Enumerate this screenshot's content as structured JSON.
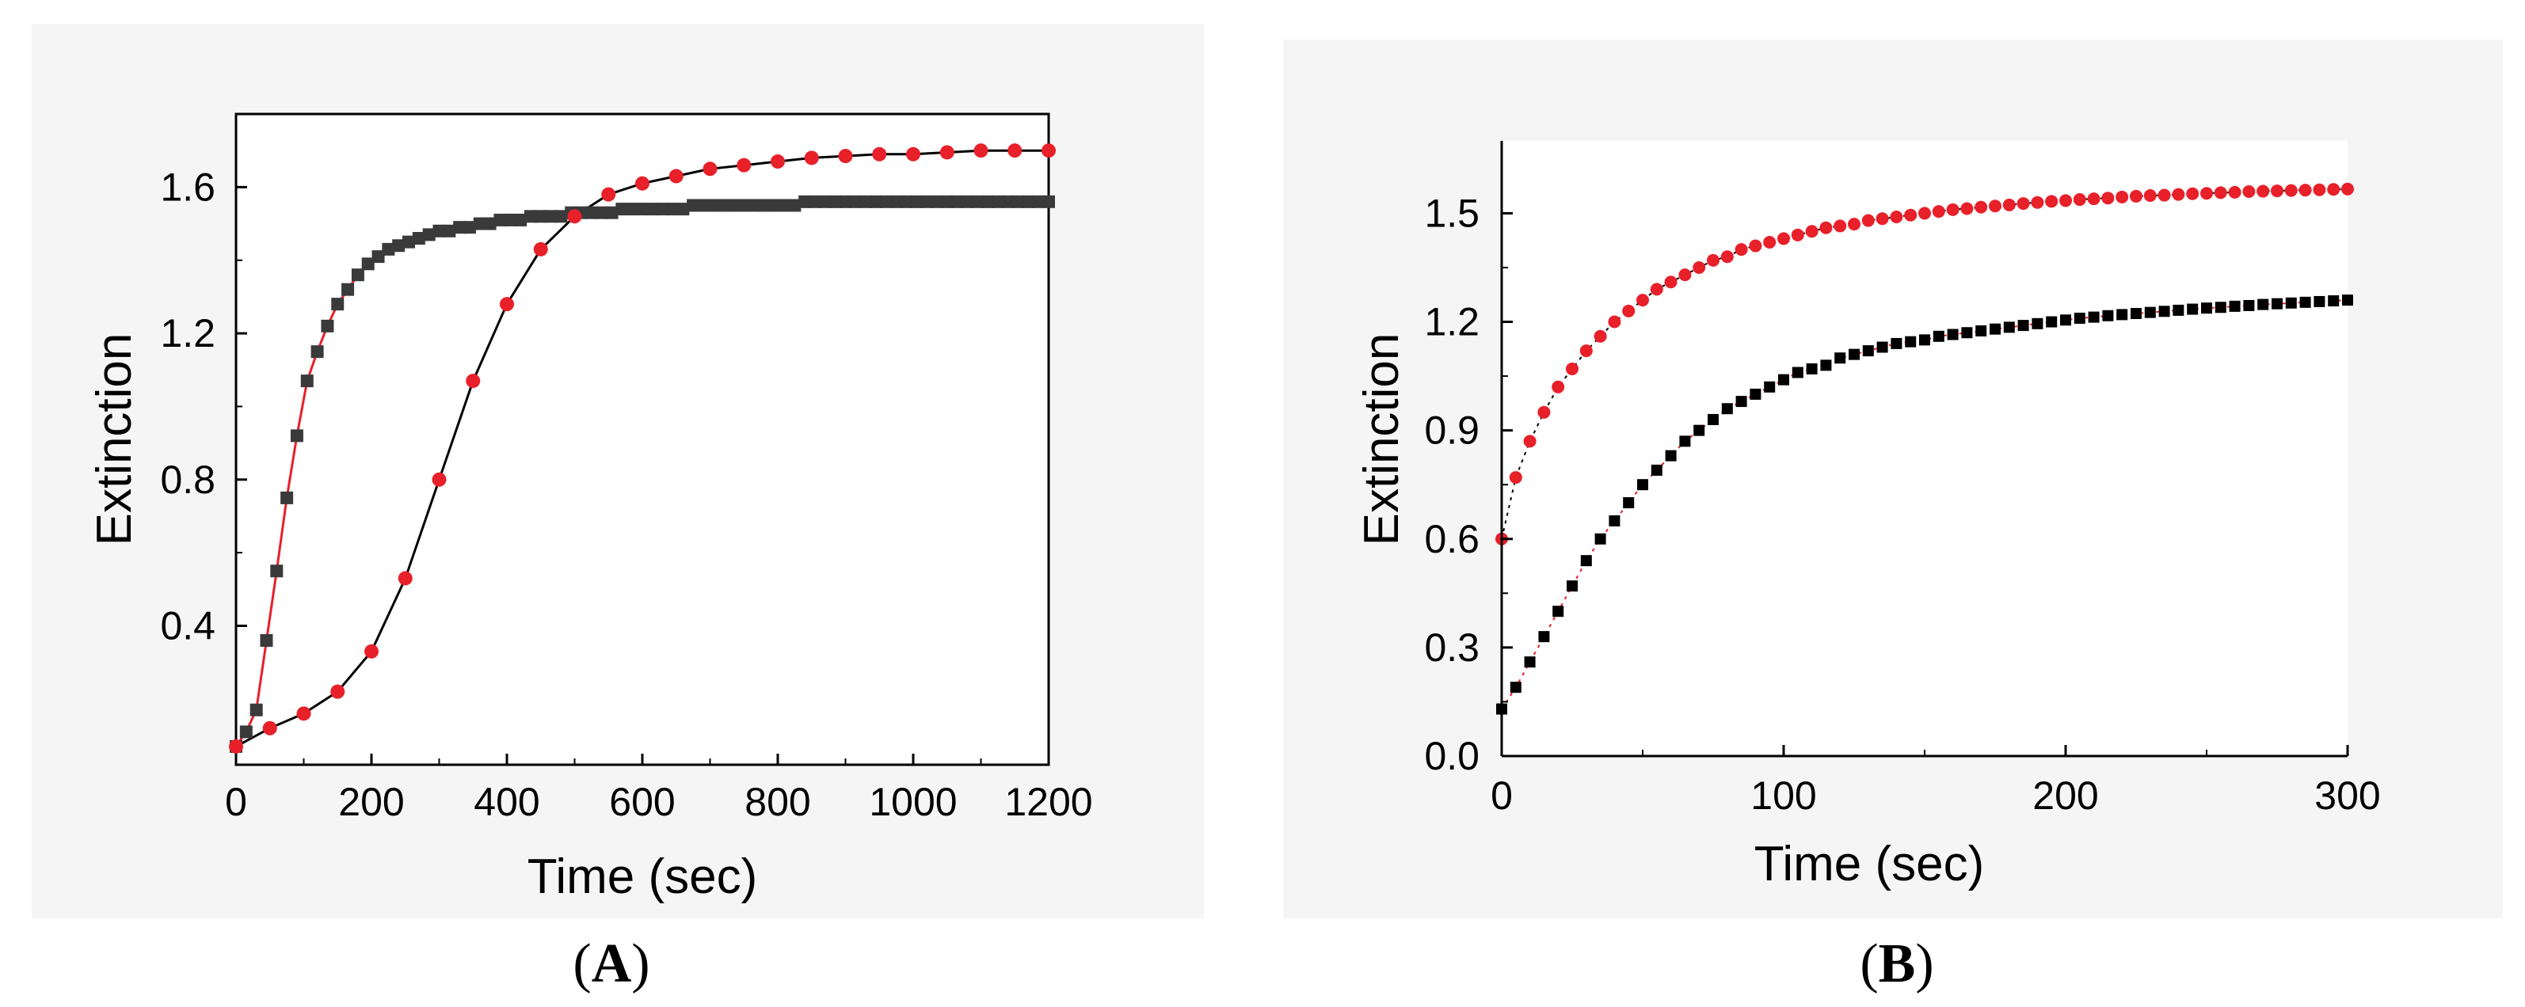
{
  "colors": {
    "black_series": "#3a3a3a",
    "black_fit": "#000000",
    "red_series": "#e8202a",
    "red_fit": "#e8202a",
    "axis": "#000000",
    "panel_bg": "#f4f4f4"
  },
  "panels": {
    "A": {
      "label_open": "(",
      "label_letter": "A",
      "label_close": ")"
    },
    "B": {
      "label_open": "(",
      "label_letter": "B",
      "label_close": ")"
    }
  },
  "chart_data": [
    {
      "id": "A",
      "type": "scatter",
      "title": "",
      "xlabel": "Time (sec)",
      "ylabel": "Extinction",
      "xlim": [
        0,
        1200
      ],
      "ylim": [
        0.02,
        1.8
      ],
      "xticks": [
        0,
        200,
        400,
        600,
        800,
        1000,
        1200
      ],
      "xtick_labels": [
        "0",
        "200",
        "400",
        "600",
        "800",
        "1000",
        "1200"
      ],
      "yticks": [
        0.4,
        0.8,
        1.2,
        1.6
      ],
      "ytick_labels": [
        "0.4",
        "0.8",
        "1.2",
        "1.6"
      ],
      "grid": false,
      "series": [
        {
          "name": "black",
          "marker": "square",
          "color": "#3a3a3a",
          "fit_color": "#e8202a",
          "x": [
            0,
            15,
            30,
            45,
            60,
            75,
            90,
            105,
            120,
            135,
            150,
            165,
            180,
            195,
            210,
            225,
            240,
            255,
            270,
            285,
            300,
            315,
            330,
            345,
            360,
            375,
            390,
            405,
            420,
            435,
            450,
            465,
            480,
            495,
            510,
            525,
            540,
            555,
            570,
            585,
            600,
            615,
            630,
            645,
            660,
            675,
            690,
            705,
            720,
            735,
            750,
            765,
            780,
            795,
            810,
            825,
            840,
            855,
            870,
            885,
            900,
            915,
            930,
            945,
            960,
            975,
            990,
            1005,
            1020,
            1035,
            1050,
            1065,
            1080,
            1095,
            1110,
            1125,
            1140,
            1155,
            1170,
            1185,
            1200
          ],
          "y": [
            0.07,
            0.11,
            0.17,
            0.36,
            0.55,
            0.75,
            0.92,
            1.07,
            1.15,
            1.22,
            1.28,
            1.32,
            1.36,
            1.39,
            1.41,
            1.43,
            1.44,
            1.45,
            1.46,
            1.47,
            1.48,
            1.48,
            1.49,
            1.49,
            1.5,
            1.5,
            1.51,
            1.51,
            1.51,
            1.52,
            1.52,
            1.52,
            1.52,
            1.53,
            1.53,
            1.53,
            1.53,
            1.53,
            1.54,
            1.54,
            1.54,
            1.54,
            1.54,
            1.54,
            1.54,
            1.55,
            1.55,
            1.55,
            1.55,
            1.55,
            1.55,
            1.55,
            1.55,
            1.55,
            1.55,
            1.55,
            1.56,
            1.56,
            1.56,
            1.56,
            1.56,
            1.56,
            1.56,
            1.56,
            1.56,
            1.56,
            1.56,
            1.56,
            1.56,
            1.56,
            1.56,
            1.56,
            1.56,
            1.56,
            1.56,
            1.56,
            1.56,
            1.56,
            1.56,
            1.56,
            1.56
          ]
        },
        {
          "name": "red",
          "marker": "circle",
          "color": "#e8202a",
          "fit_color": "#000000",
          "x": [
            0,
            50,
            100,
            150,
            200,
            250,
            300,
            350,
            400,
            450,
            500,
            550,
            600,
            650,
            700,
            750,
            800,
            850,
            900,
            950,
            1000,
            1050,
            1100,
            1150,
            1200
          ],
          "y": [
            0.07,
            0.12,
            0.16,
            0.22,
            0.33,
            0.53,
            0.8,
            1.07,
            1.28,
            1.43,
            1.52,
            1.58,
            1.61,
            1.63,
            1.65,
            1.66,
            1.67,
            1.68,
            1.685,
            1.69,
            1.69,
            1.695,
            1.7,
            1.7,
            1.7
          ]
        }
      ]
    },
    {
      "id": "B",
      "type": "scatter",
      "title": "",
      "xlabel": "Time (sec)",
      "ylabel": "Extinction",
      "xlim": [
        0,
        300
      ],
      "ylim": [
        0.0,
        1.7
      ],
      "xticks": [
        0,
        100,
        200,
        300
      ],
      "xtick_labels": [
        "0",
        "100",
        "200",
        "300"
      ],
      "yticks": [
        0.0,
        0.3,
        0.6,
        0.9,
        1.2,
        1.5
      ],
      "ytick_labels": [
        "0.0",
        "0.3",
        "0.6",
        "0.9",
        "1.2",
        "1.5"
      ],
      "grid": false,
      "series": [
        {
          "name": "red",
          "marker": "circle",
          "color": "#e8202a",
          "fit_color": "#000000",
          "x": [
            0,
            5,
            10,
            15,
            20,
            25,
            30,
            35,
            40,
            45,
            50,
            55,
            60,
            65,
            70,
            75,
            80,
            85,
            90,
            95,
            100,
            105,
            110,
            115,
            120,
            125,
            130,
            135,
            140,
            145,
            150,
            155,
            160,
            165,
            170,
            175,
            180,
            185,
            190,
            195,
            200,
            205,
            210,
            215,
            220,
            225,
            230,
            235,
            240,
            245,
            250,
            255,
            260,
            265,
            270,
            275,
            280,
            285,
            290,
            295,
            300
          ],
          "y": [
            0.6,
            0.77,
            0.87,
            0.95,
            1.02,
            1.07,
            1.12,
            1.16,
            1.2,
            1.23,
            1.26,
            1.29,
            1.31,
            1.33,
            1.35,
            1.37,
            1.38,
            1.4,
            1.41,
            1.42,
            1.43,
            1.44,
            1.45,
            1.46,
            1.465,
            1.47,
            1.48,
            1.485,
            1.49,
            1.495,
            1.5,
            1.505,
            1.51,
            1.513,
            1.517,
            1.52,
            1.523,
            1.527,
            1.53,
            1.533,
            1.535,
            1.538,
            1.54,
            1.542,
            1.545,
            1.547,
            1.549,
            1.55,
            1.552,
            1.554,
            1.555,
            1.557,
            1.558,
            1.56,
            1.561,
            1.562,
            1.563,
            1.564,
            1.565,
            1.566,
            1.567
          ]
        },
        {
          "name": "black",
          "marker": "square",
          "color": "#000000",
          "fit_color": "#e8202a",
          "x": [
            0,
            5,
            10,
            15,
            20,
            25,
            30,
            35,
            40,
            45,
            50,
            55,
            60,
            65,
            70,
            75,
            80,
            85,
            90,
            95,
            100,
            105,
            110,
            115,
            120,
            125,
            130,
            135,
            140,
            145,
            150,
            155,
            160,
            165,
            170,
            175,
            180,
            185,
            190,
            195,
            200,
            205,
            210,
            215,
            220,
            225,
            230,
            235,
            240,
            245,
            250,
            255,
            260,
            265,
            270,
            275,
            280,
            285,
            290,
            295,
            300
          ],
          "y": [
            0.13,
            0.19,
            0.26,
            0.33,
            0.4,
            0.47,
            0.54,
            0.6,
            0.65,
            0.7,
            0.75,
            0.79,
            0.83,
            0.87,
            0.9,
            0.93,
            0.96,
            0.98,
            1.0,
            1.02,
            1.04,
            1.06,
            1.07,
            1.08,
            1.1,
            1.11,
            1.12,
            1.13,
            1.14,
            1.145,
            1.15,
            1.16,
            1.165,
            1.17,
            1.175,
            1.18,
            1.185,
            1.19,
            1.195,
            1.2,
            1.205,
            1.21,
            1.213,
            1.217,
            1.22,
            1.223,
            1.226,
            1.229,
            1.232,
            1.235,
            1.238,
            1.24,
            1.243,
            1.245,
            1.248,
            1.25,
            1.252,
            1.254,
            1.256,
            1.258,
            1.26
          ]
        }
      ]
    }
  ]
}
